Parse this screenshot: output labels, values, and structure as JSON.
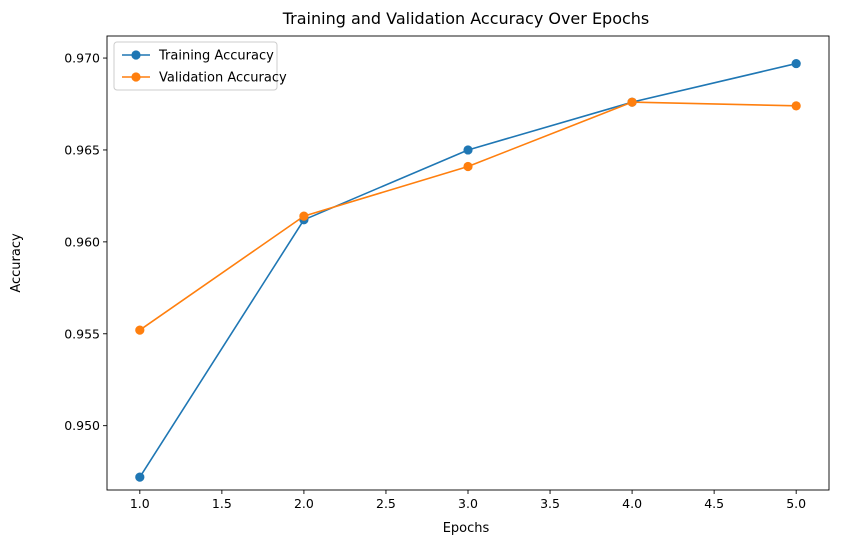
{
  "chart_data": {
    "type": "line",
    "title": "Training and Validation Accuracy Over Epochs",
    "xlabel": "Epochs",
    "ylabel": "Accuracy",
    "xlim": [
      0.8,
      5.2
    ],
    "ylim": [
      0.9465,
      0.9712
    ],
    "xticks": [
      1.0,
      1.5,
      2.0,
      2.5,
      3.0,
      3.5,
      4.0,
      4.5,
      5.0
    ],
    "xtick_labels": [
      "1.0",
      "1.5",
      "2.0",
      "2.5",
      "3.0",
      "3.5",
      "4.0",
      "4.5",
      "5.0"
    ],
    "yticks": [
      0.95,
      0.955,
      0.96,
      0.965,
      0.97
    ],
    "ytick_labels": [
      "0.950",
      "0.955",
      "0.960",
      "0.965",
      "0.970"
    ],
    "grid": false,
    "legend_position": "top-left",
    "x": [
      1,
      2,
      3,
      4,
      5
    ],
    "series": [
      {
        "name": "Training Accuracy",
        "color": "#1f77b4",
        "marker": "circle",
        "values": [
          0.9472,
          0.9612,
          0.965,
          0.9676,
          0.9697
        ]
      },
      {
        "name": "Validation Accuracy",
        "color": "#ff7f0e",
        "marker": "circle",
        "values": [
          0.9552,
          0.9614,
          0.9641,
          0.9676,
          0.9674
        ]
      }
    ]
  }
}
